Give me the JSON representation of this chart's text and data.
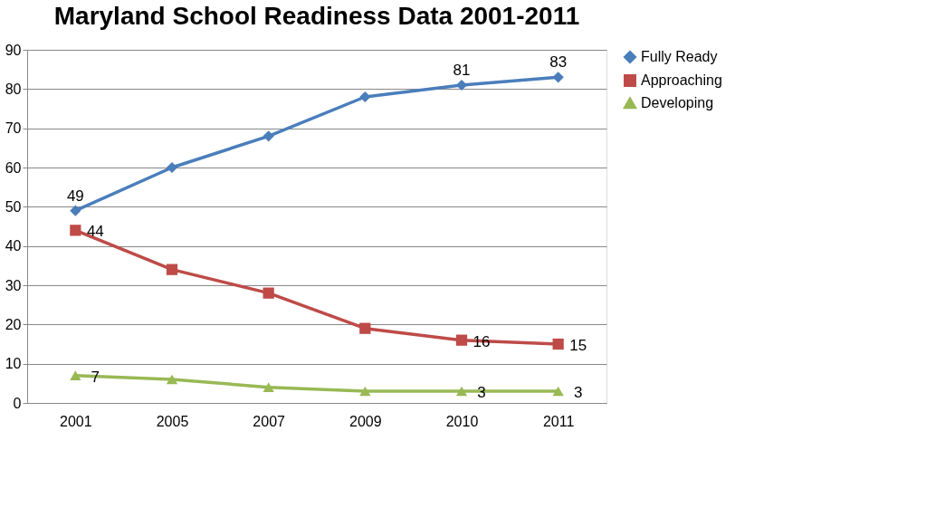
{
  "chart_data": {
    "type": "line",
    "title": "Maryland School Readiness Data 2001-2011",
    "categories": [
      "2001",
      "2005",
      "2007",
      "2009",
      "2010",
      "2011"
    ],
    "ylim": [
      0,
      90
    ],
    "yticks": [
      0,
      10,
      20,
      30,
      40,
      50,
      60,
      70,
      80,
      90
    ],
    "grid": "y",
    "legend": "right",
    "series": [
      {
        "name": "Fully Ready",
        "color": "#4a7ebb",
        "marker": "diamond",
        "values": [
          49,
          60,
          68,
          78,
          81,
          83
        ],
        "value_labels": [
          "49",
          null,
          null,
          null,
          "81",
          "83"
        ]
      },
      {
        "name": "Approaching",
        "color": "#be4b48",
        "marker": "square",
        "values": [
          44,
          34,
          28,
          19,
          16,
          15
        ],
        "value_labels": [
          "44",
          null,
          null,
          null,
          "16",
          "15"
        ]
      },
      {
        "name": "Developing",
        "color": "#98b954",
        "marker": "triangle",
        "values": [
          7,
          6,
          4,
          3,
          3,
          3
        ],
        "value_labels": [
          "7",
          null,
          null,
          null,
          "3",
          "3"
        ]
      }
    ]
  }
}
